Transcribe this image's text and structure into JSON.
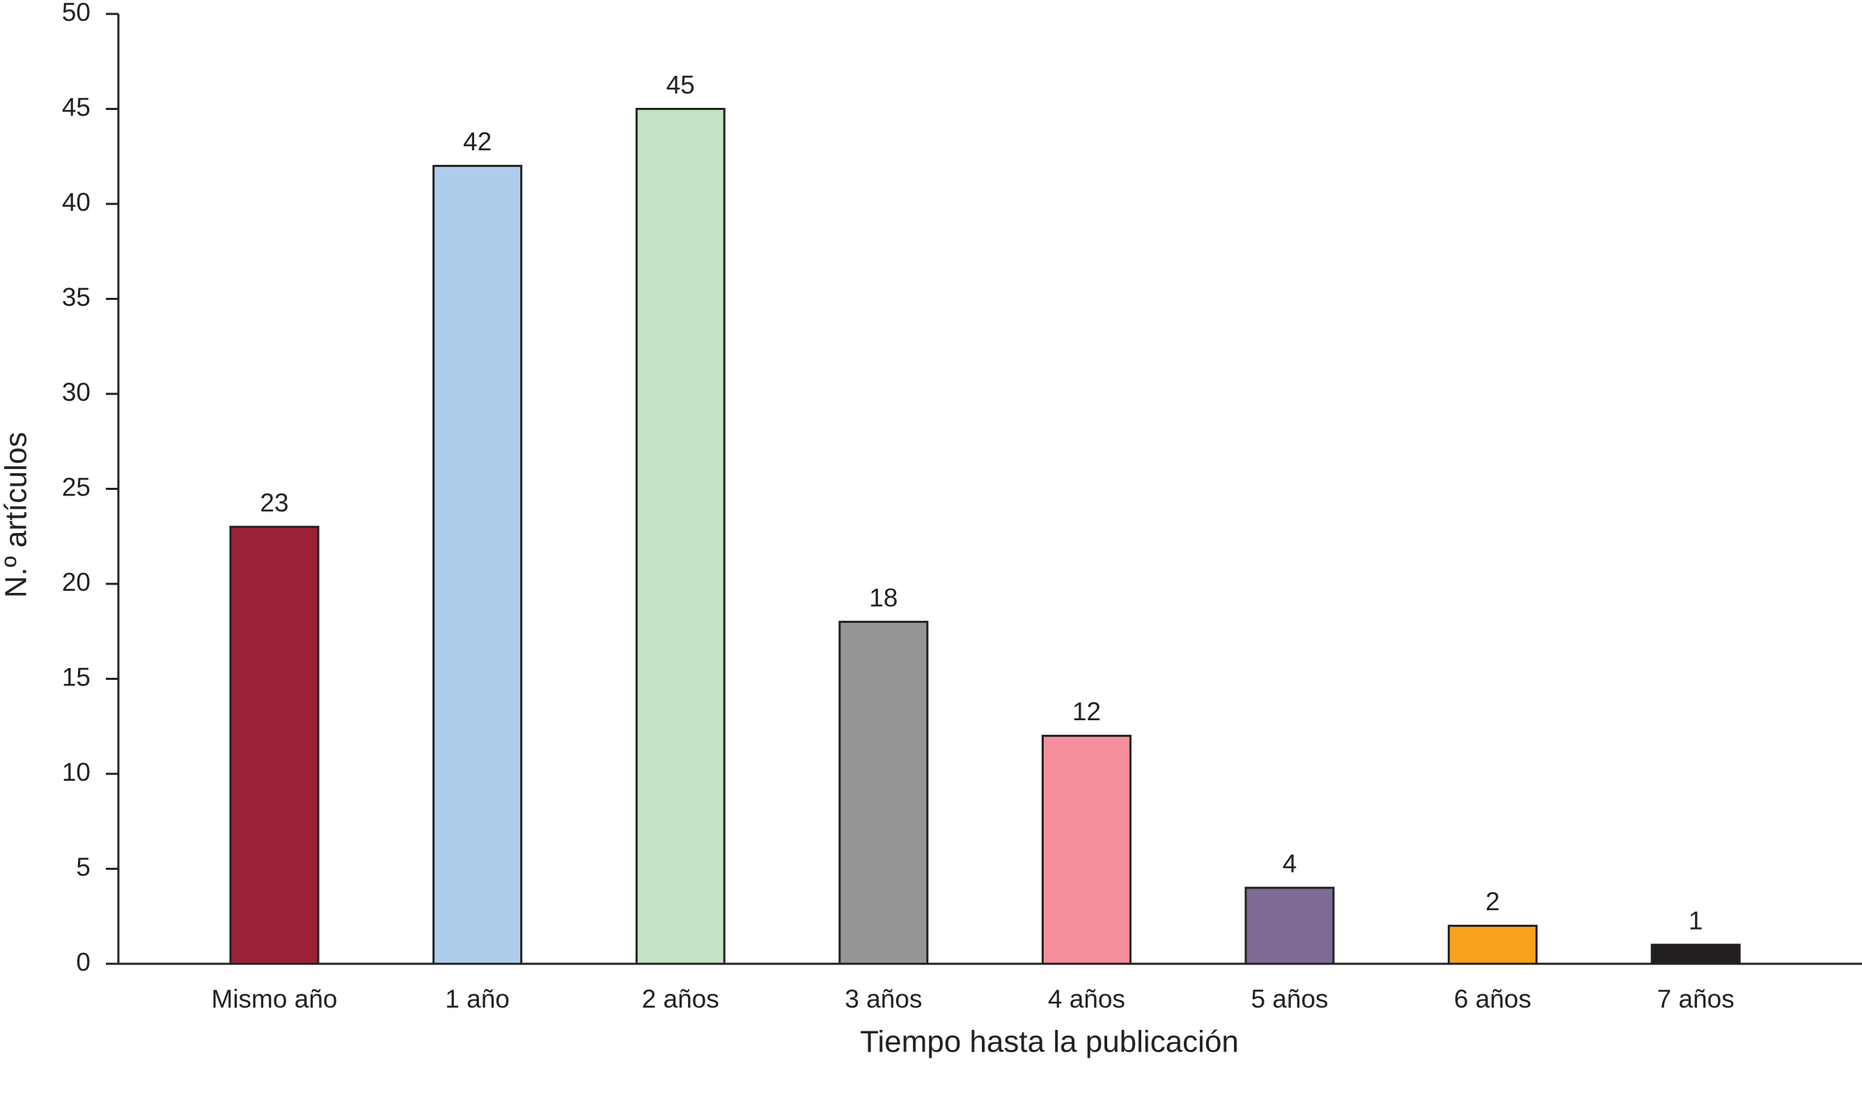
{
  "chart_data": {
    "type": "bar",
    "x_label": "Tiempo hasta la publicación",
    "y_label": "N.º artículos",
    "categories": [
      "Mismo año",
      "1 año",
      "2 años",
      "3 años",
      "4 años",
      "5 años",
      "6 años",
      "7 años"
    ],
    "values": [
      23,
      42,
      45,
      18,
      12,
      4,
      2,
      1
    ],
    "colors": [
      "#9b2236",
      "#aecdec",
      "#c5e4c5",
      "#969696",
      "#f48e9a",
      "#7e6b93",
      "#f7a21c",
      "#231f20"
    ],
    "ylim": [
      0,
      50
    ],
    "yticks": [
      0,
      5,
      10,
      15,
      20,
      25,
      30,
      35,
      40,
      45,
      50
    ],
    "grid": false
  }
}
